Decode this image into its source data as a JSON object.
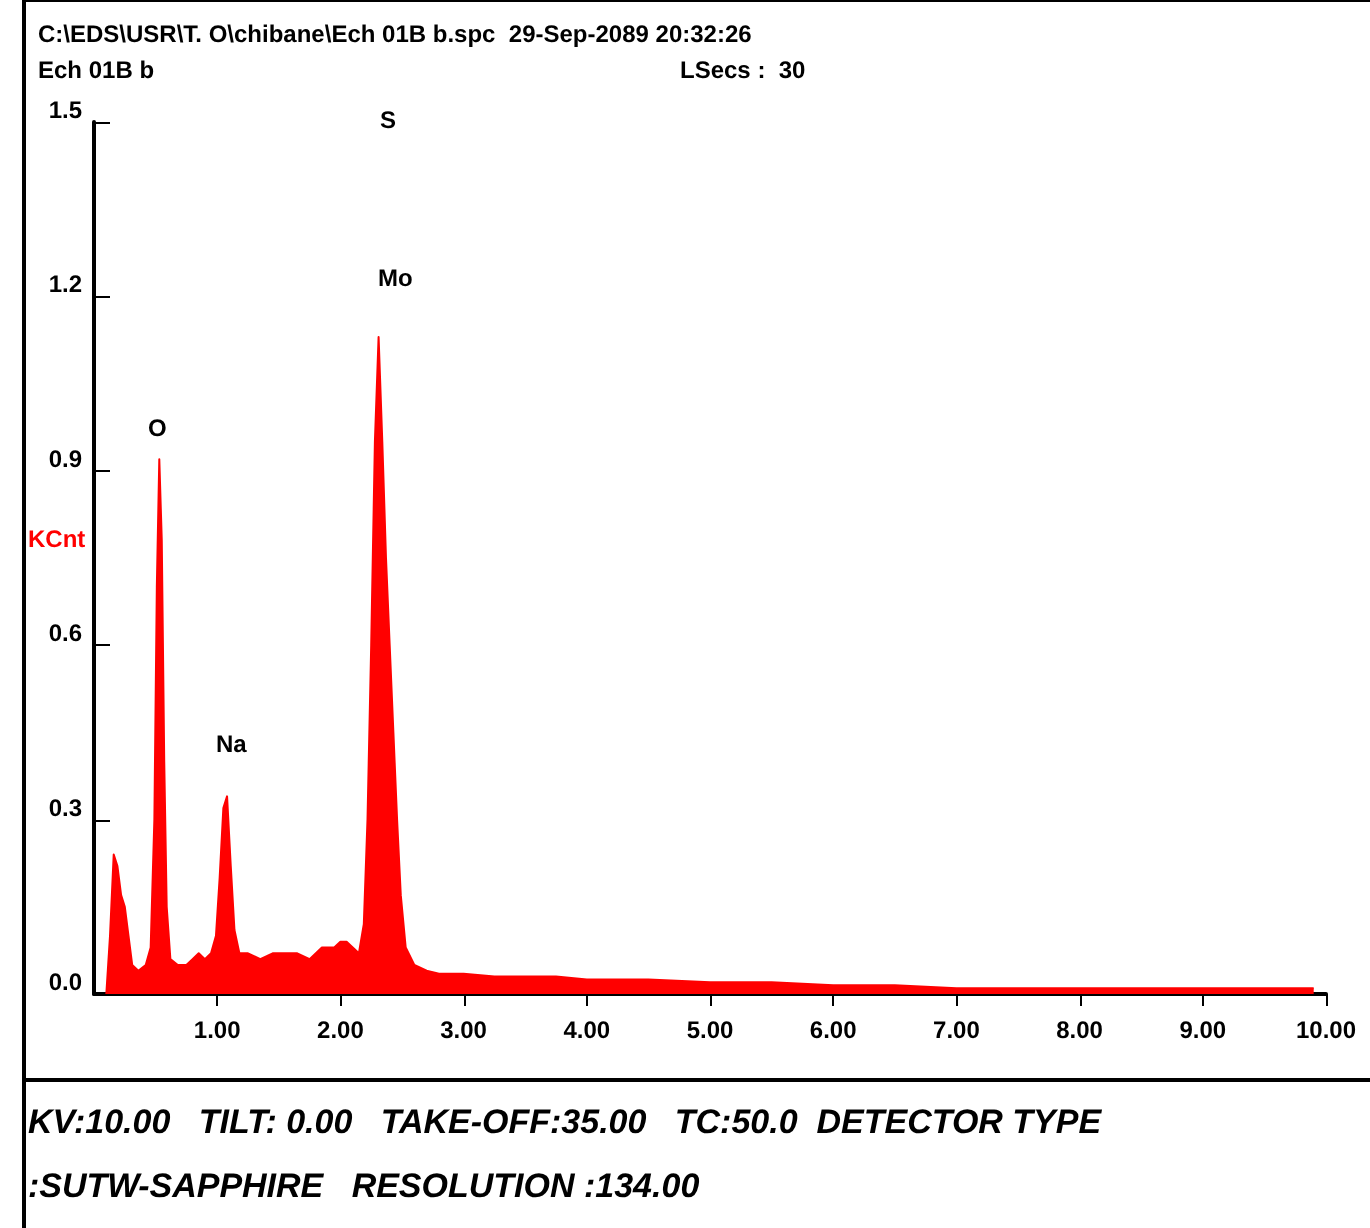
{
  "chart_data": {
    "type": "area",
    "title": "C:\\EDS\\USR\\T. O\\chibane\\Ech 01B b.spc  29-Sep-2089 20:32:26",
    "subtitle": "Ech 01B b",
    "ylabel": "KCnt",
    "annotations": [
      "LSecs :  30",
      "KV:10.00   TILT: 0.00   TAKE-OFF:35.00   TC:50.0  DETECTOR TYPE :SUTW-SAPPHIRE   RESOLUTION :134.00",
      "S",
      "Mo",
      "O",
      "Na"
    ],
    "x": [
      0.1,
      0.13,
      0.16,
      0.19,
      0.22,
      0.25,
      0.28,
      0.31,
      0.36,
      0.42,
      0.46,
      0.49,
      0.51,
      0.53,
      0.55,
      0.57,
      0.59,
      0.62,
      0.68,
      0.75,
      0.8,
      0.85,
      0.9,
      0.95,
      0.99,
      1.02,
      1.05,
      1.08,
      1.11,
      1.14,
      1.18,
      1.25,
      1.35,
      1.45,
      1.55,
      1.65,
      1.75,
      1.85,
      1.95,
      2.0,
      2.05,
      2.1,
      2.15,
      2.19,
      2.22,
      2.25,
      2.28,
      2.31,
      2.34,
      2.37,
      2.4,
      2.43,
      2.46,
      2.49,
      2.53,
      2.6,
      2.7,
      2.8,
      3.0,
      3.25,
      3.5,
      3.75,
      4.0,
      4.5,
      5.0,
      5.5,
      6.0,
      6.5,
      7.0,
      7.5,
      8.0,
      8.5,
      9.0,
      9.5,
      9.9
    ],
    "series": [
      {
        "color": "#ff0000",
        "values": [
          0.0,
          0.1,
          0.24,
          0.22,
          0.17,
          0.15,
          0.1,
          0.05,
          0.04,
          0.05,
          0.08,
          0.3,
          0.7,
          0.92,
          0.78,
          0.4,
          0.15,
          0.06,
          0.05,
          0.05,
          0.06,
          0.07,
          0.06,
          0.07,
          0.1,
          0.2,
          0.32,
          0.34,
          0.22,
          0.11,
          0.07,
          0.07,
          0.06,
          0.07,
          0.07,
          0.07,
          0.06,
          0.08,
          0.08,
          0.09,
          0.09,
          0.08,
          0.07,
          0.12,
          0.3,
          0.6,
          0.95,
          1.13,
          0.95,
          0.75,
          0.6,
          0.45,
          0.3,
          0.17,
          0.08,
          0.05,
          0.04,
          0.035,
          0.035,
          0.03,
          0.03,
          0.03,
          0.025,
          0.025,
          0.02,
          0.02,
          0.015,
          0.015,
          0.01,
          0.01,
          0.01,
          0.01,
          0.01,
          0.01,
          0.01
        ]
      }
    ],
    "xlim": [
      0,
      10
    ],
    "xticks": [
      {
        "value": 1,
        "label": "1.00"
      },
      {
        "value": 2,
        "label": "2.00"
      },
      {
        "value": 3,
        "label": "3.00"
      },
      {
        "value": 4,
        "label": "4.00"
      },
      {
        "value": 5,
        "label": "5.00"
      },
      {
        "value": 6,
        "label": "6.00"
      },
      {
        "value": 7,
        "label": "7.00"
      },
      {
        "value": 8,
        "label": "8.00"
      },
      {
        "value": 9,
        "label": "9.00"
      },
      {
        "value": 10,
        "label": "10.00"
      }
    ],
    "ylim": [
      0,
      1.5
    ],
    "yticks": [
      {
        "value": 0,
        "label": "0.0"
      },
      {
        "value": 0.3,
        "label": "0.3"
      },
      {
        "value": 0.6,
        "label": "0.6"
      },
      {
        "value": 0.9,
        "label": "0.9"
      },
      {
        "value": 1.2,
        "label": "1.2"
      },
      {
        "value": 1.5,
        "label": "1.5"
      }
    ],
    "grid": false,
    "marker": "none"
  }
}
